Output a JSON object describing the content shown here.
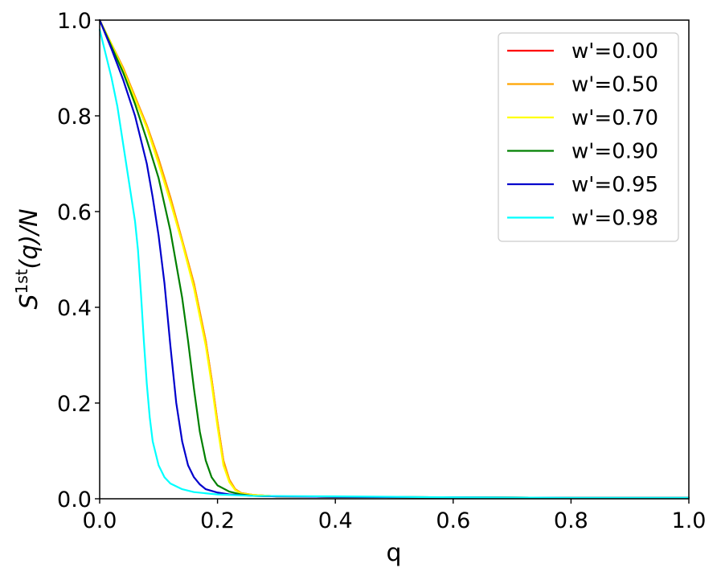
{
  "chart_data": {
    "type": "line",
    "xlabel": "q",
    "ylabel_main": "S",
    "ylabel_sup": "1st",
    "ylabel_tail": "(q)/N",
    "xlim": [
      0.0,
      1.0
    ],
    "ylim": [
      0.0,
      1.0
    ],
    "xticks": [
      "0.0",
      "0.2",
      "0.4",
      "0.6",
      "0.8",
      "1.0"
    ],
    "yticks": [
      "0.0",
      "0.2",
      "0.4",
      "0.6",
      "0.8",
      "1.0"
    ],
    "grid": false,
    "legend_position": "top-right",
    "series": [
      {
        "name": "w'=0.00",
        "color": "#ff0000",
        "x": [
          0.0,
          0.02,
          0.04,
          0.06,
          0.08,
          0.1,
          0.12,
          0.14,
          0.16,
          0.18,
          0.19,
          0.2,
          0.21,
          0.22,
          0.23,
          0.24,
          0.26,
          0.3,
          0.4,
          0.6,
          0.8,
          1.0
        ],
        "y": [
          1.0,
          0.95,
          0.9,
          0.84,
          0.78,
          0.71,
          0.63,
          0.54,
          0.45,
          0.33,
          0.25,
          0.16,
          0.08,
          0.04,
          0.02,
          0.012,
          0.008,
          0.005,
          0.004,
          0.003,
          0.002,
          0.002
        ]
      },
      {
        "name": "w'=0.50",
        "color": "#ffa500",
        "x": [
          0.0,
          0.02,
          0.04,
          0.06,
          0.08,
          0.1,
          0.12,
          0.14,
          0.16,
          0.18,
          0.19,
          0.2,
          0.21,
          0.22,
          0.23,
          0.24,
          0.26,
          0.3,
          0.4,
          0.6,
          0.8,
          1.0
        ],
        "y": [
          1.0,
          0.95,
          0.9,
          0.84,
          0.78,
          0.71,
          0.63,
          0.54,
          0.45,
          0.33,
          0.25,
          0.16,
          0.08,
          0.04,
          0.02,
          0.012,
          0.008,
          0.005,
          0.004,
          0.003,
          0.002,
          0.002
        ]
      },
      {
        "name": "w'=0.70",
        "color": "#ffff00",
        "x": [
          0.0,
          0.02,
          0.04,
          0.06,
          0.08,
          0.1,
          0.12,
          0.14,
          0.16,
          0.18,
          0.19,
          0.2,
          0.21,
          0.22,
          0.23,
          0.24,
          0.26,
          0.3,
          0.4,
          0.6,
          0.8,
          1.0
        ],
        "y": [
          1.0,
          0.95,
          0.895,
          0.835,
          0.775,
          0.7,
          0.62,
          0.535,
          0.44,
          0.32,
          0.24,
          0.15,
          0.07,
          0.035,
          0.018,
          0.011,
          0.008,
          0.005,
          0.004,
          0.003,
          0.002,
          0.002
        ]
      },
      {
        "name": "w'=0.90",
        "color": "#008000",
        "x": [
          0.0,
          0.02,
          0.04,
          0.06,
          0.08,
          0.1,
          0.12,
          0.14,
          0.15,
          0.16,
          0.17,
          0.18,
          0.19,
          0.2,
          0.22,
          0.24,
          0.26,
          0.3,
          0.4,
          0.6,
          0.8,
          1.0
        ],
        "y": [
          1.0,
          0.945,
          0.89,
          0.825,
          0.75,
          0.67,
          0.56,
          0.42,
          0.33,
          0.23,
          0.14,
          0.08,
          0.045,
          0.028,
          0.015,
          0.009,
          0.006,
          0.005,
          0.004,
          0.003,
          0.002,
          0.002
        ]
      },
      {
        "name": "w'=0.95",
        "color": "#0000cc",
        "x": [
          0.0,
          0.02,
          0.04,
          0.06,
          0.08,
          0.09,
          0.1,
          0.11,
          0.12,
          0.13,
          0.14,
          0.15,
          0.16,
          0.17,
          0.18,
          0.2,
          0.22,
          0.26,
          0.3,
          0.4,
          0.6,
          0.8,
          1.0
        ],
        "y": [
          1.0,
          0.94,
          0.875,
          0.8,
          0.7,
          0.63,
          0.55,
          0.45,
          0.32,
          0.2,
          0.12,
          0.07,
          0.045,
          0.03,
          0.02,
          0.013,
          0.009,
          0.006,
          0.005,
          0.004,
          0.003,
          0.002,
          0.002
        ]
      },
      {
        "name": "w'=0.98",
        "color": "#00ffff",
        "x": [
          0.0,
          0.01,
          0.02,
          0.03,
          0.04,
          0.05,
          0.06,
          0.065,
          0.07,
          0.075,
          0.08,
          0.085,
          0.09,
          0.1,
          0.11,
          0.12,
          0.14,
          0.16,
          0.2,
          0.26,
          0.4,
          0.6,
          0.8,
          1.0
        ],
        "y": [
          0.98,
          0.93,
          0.88,
          0.82,
          0.74,
          0.66,
          0.58,
          0.52,
          0.43,
          0.33,
          0.24,
          0.17,
          0.12,
          0.07,
          0.045,
          0.032,
          0.02,
          0.014,
          0.009,
          0.006,
          0.005,
          0.003,
          0.002,
          0.002
        ]
      }
    ]
  }
}
